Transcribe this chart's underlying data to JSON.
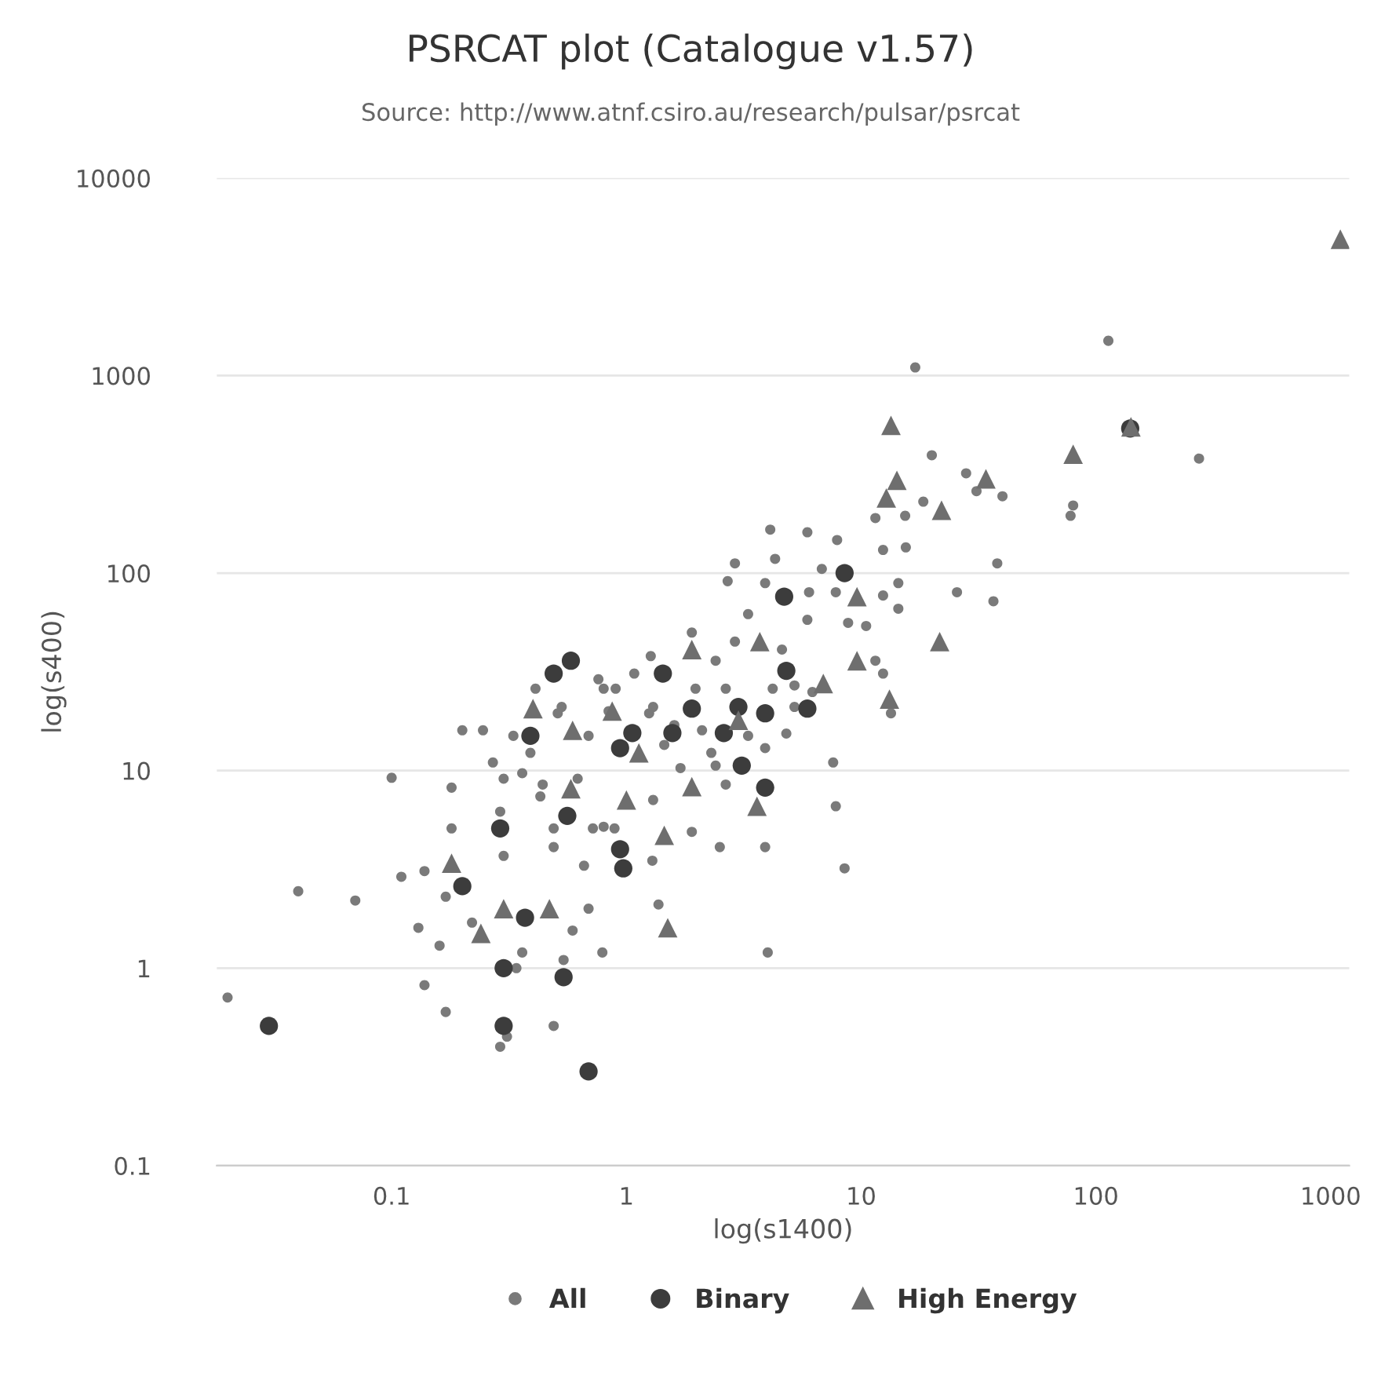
{
  "chart_data": {
    "type": "scatter",
    "title": "PSRCAT plot (Catalogue v1.57)",
    "subtitle": "Source: http://www.atnf.csiro.au/research/pulsar/psrcat",
    "xlabel": "log(s1400)",
    "ylabel": "log(s400)",
    "log": "xy",
    "xlim": [
      0.018,
      1200
    ],
    "ylim": [
      0.1,
      10000
    ],
    "xticks": [
      0.1,
      1,
      10,
      100,
      1000
    ],
    "yticks": [
      0.1,
      1,
      10,
      100,
      1000,
      10000
    ],
    "grid": "y",
    "legend": "bottom",
    "series": [
      {
        "name": "All",
        "color": "#7a7a7a",
        "marker": "circle",
        "x": [
          0.02,
          0.04,
          0.07,
          0.1,
          0.11,
          0.138,
          0.13,
          0.16,
          0.138,
          0.17,
          0.2,
          0.245,
          0.18,
          0.18,
          0.17,
          0.22,
          0.29,
          0.31,
          0.34,
          0.49,
          0.69,
          0.59,
          0.54,
          0.79,
          0.36,
          0.27,
          0.3,
          0.3,
          0.29,
          0.39,
          0.43,
          0.49,
          0.66,
          0.53,
          0.9,
          1.27,
          1.37,
          1.29,
          0.72,
          0.89,
          0.49,
          0.36,
          0.62,
          20,
          28,
          31,
          40,
          15.4,
          11.5,
          18.4,
          38,
          25.6,
          36.6,
          4.1,
          5.9,
          7.9,
          12.4,
          15.5,
          2.9,
          4.3,
          2.7,
          6.8,
          14.4,
          12.4,
          14.4,
          7.8,
          6.0,
          3.3,
          3.9,
          5.9,
          8.8,
          10.5,
          12.4,
          11.5,
          13.4,
          7.8,
          1.9,
          2.9,
          5.2,
          4.6,
          6.2,
          4.8,
          3.9,
          2.4,
          2.4,
          2.5,
          3.9,
          1.9,
          1.3,
          1.6,
          1.3,
          0.8,
          0.76,
          0.84,
          17,
          113,
          275,
          78,
          80,
          7.6,
          8.5,
          4.0,
          1.97,
          2.3,
          1.7,
          2.65,
          1.25,
          2.1,
          1.45,
          0.69,
          0.44,
          0.51,
          0.33,
          0.41,
          0.8,
          1.08,
          2.65,
          3.3,
          4.2,
          5.2
        ],
        "values": [
          0.71,
          2.45,
          2.2,
          9.2,
          2.9,
          3.1,
          1.6,
          1.3,
          0.82,
          0.6,
          16,
          16,
          8.2,
          5.1,
          2.3,
          1.7,
          0.4,
          0.45,
          1.0,
          0.51,
          2.0,
          1.55,
          1.1,
          1.2,
          1.2,
          11,
          9.1,
          3.7,
          6.2,
          12.3,
          7.4,
          4.1,
          3.3,
          21,
          26,
          38,
          2.1,
          3.5,
          5.1,
          5.1,
          5.1,
          9.7,
          9.1,
          395,
          320,
          260,
          245,
          195,
          190,
          230,
          112,
          80,
          72,
          166,
          161,
          147,
          131,
          135,
          112,
          118,
          91,
          105,
          89,
          77,
          66,
          80,
          80,
          62,
          89,
          58,
          56,
          54,
          31,
          36,
          19.5,
          6.6,
          50,
          45,
          27,
          41,
          25,
          15.4,
          13,
          36,
          10.6,
          4.1,
          4.1,
          4.9,
          7.1,
          17,
          21,
          5.2,
          29,
          20,
          1100,
          1500,
          380,
          195,
          220,
          11,
          3.2,
          1.2,
          26,
          12.3,
          10.3,
          8.5,
          19.5,
          16,
          13.5,
          15,
          8.5,
          19.5,
          15,
          26,
          26,
          31,
          26,
          15,
          26,
          21
        ]
      },
      {
        "name": "Binary",
        "color": "#3c3c3c",
        "marker": "circle",
        "x": [
          0.03,
          0.3,
          0.3,
          0.69,
          0.54,
          0.37,
          0.2,
          0.29,
          0.56,
          0.97,
          0.94,
          0.58,
          0.49,
          0.39,
          1.06,
          8.5,
          4.7,
          4.8,
          5.9,
          3.9,
          1.43,
          1.9,
          3.0,
          2.6,
          3.9,
          3.1,
          0.94,
          1.57,
          140
        ],
        "values": [
          0.51,
          0.51,
          1.0,
          0.3,
          0.9,
          1.8,
          2.6,
          5.1,
          5.9,
          3.2,
          4.0,
          36,
          31,
          15,
          15.5,
          100,
          76,
          32,
          20.6,
          8.2,
          31,
          20.6,
          21,
          15.5,
          19.5,
          10.6,
          13,
          15.5,
          540
        ]
      },
      {
        "name": "High Energy",
        "color": "#6e6e6e",
        "marker": "triangle",
        "x": [
          1100,
          13.4,
          14.2,
          12.8,
          22,
          34,
          80,
          141,
          9.6,
          21.6,
          13.2,
          9.6,
          3.7,
          1.9,
          0.4,
          0.59,
          0.87,
          3.0,
          6.9,
          1.13,
          1.0,
          1.9,
          1.45,
          3.6,
          0.58,
          0.18,
          0.3,
          0.47,
          0.24,
          1.5
        ],
        "values": [
          4900,
          560,
          295,
          240,
          208,
          300,
          400,
          550,
          76,
          45,
          23,
          36,
          45,
          41,
          20.6,
          16,
          20,
          18,
          27.6,
          12.3,
          7.1,
          8.3,
          4.7,
          6.6,
          8.1,
          3.4,
          2.0,
          2.0,
          1.5,
          1.6
        ]
      }
    ]
  }
}
